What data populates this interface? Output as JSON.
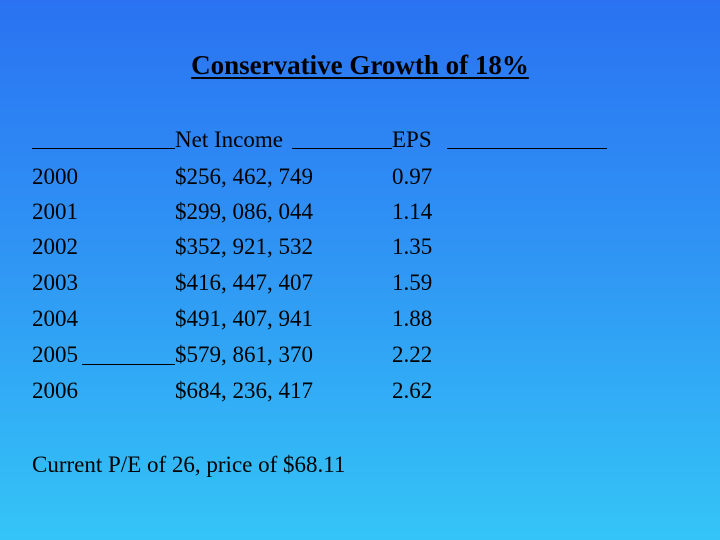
{
  "title": "Conservative Growth of 18%",
  "table": {
    "headers": {
      "year": "",
      "net_income": "Net Income",
      "eps": "EPS"
    },
    "rows": [
      {
        "year": "2000",
        "net_income": "$256, 462, 749",
        "eps": "0.97"
      },
      {
        "year": "2001",
        "net_income": "$299, 086, 044",
        "eps": "1.14"
      },
      {
        "year": "2002",
        "net_income": "$352, 921, 532",
        "eps": "1.35"
      },
      {
        "year": "2003",
        "net_income": "$416, 447, 407",
        "eps": "1.59"
      },
      {
        "year": "2004",
        "net_income": "$491, 407, 941",
        "eps": "1.88"
      },
      {
        "year": "2005",
        "net_income": "$579, 861, 370",
        "eps": "2.22"
      },
      {
        "year": "2006",
        "net_income": "$684, 236, 417",
        "eps": "2.62"
      }
    ]
  },
  "footer": "Current P/E of 26, price of $68.11"
}
